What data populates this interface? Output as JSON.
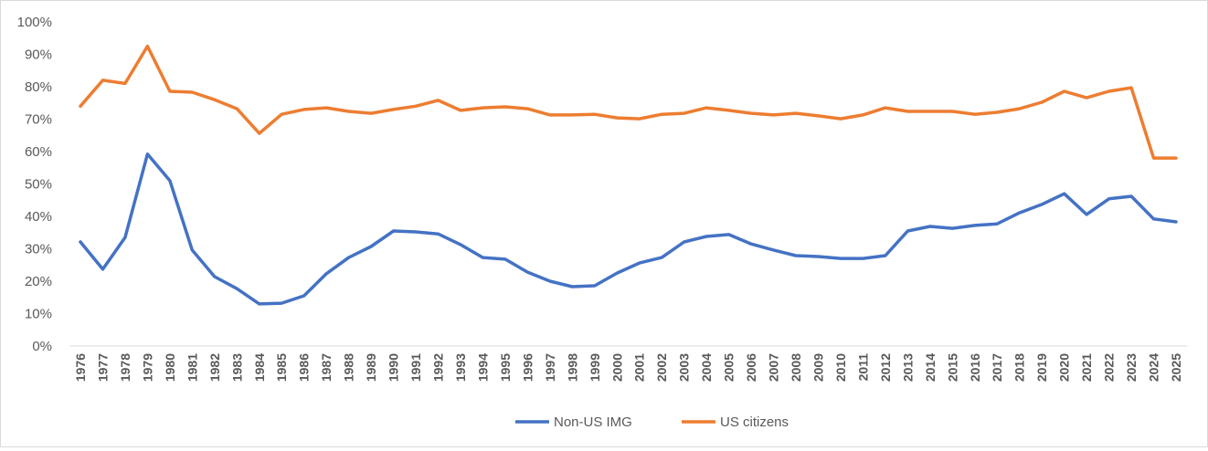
{
  "chart_data": {
    "type": "line",
    "title": "",
    "xlabel": "",
    "ylabel": "",
    "ylim": [
      0,
      100
    ],
    "y_ticks": [
      "0%",
      "10%",
      "20%",
      "30%",
      "40%",
      "50%",
      "60%",
      "70%",
      "80%",
      "90%",
      "100%"
    ],
    "grid": false,
    "legend_position": "bottom",
    "x": [
      "1976",
      "1977",
      "1978",
      "1979",
      "1980",
      "1981",
      "1982",
      "1983",
      "1984",
      "1985",
      "1986",
      "1987",
      "1988",
      "1989",
      "1990",
      "1991",
      "1992",
      "1993",
      "1994",
      "1995",
      "1996",
      "1997",
      "1998",
      "1999",
      "2000",
      "2001",
      "2002",
      "2003",
      "2004",
      "2005",
      "2006",
      "2007",
      "2008",
      "2009",
      "2010",
      "2011",
      "2012",
      "2013",
      "2014",
      "2015",
      "2016",
      "2017",
      "2018",
      "2019",
      "2020",
      "2021",
      "2022",
      "2023",
      "2024",
      "2025"
    ],
    "series": [
      {
        "name": "Non-US IMG",
        "color": "#4472c4",
        "values": [
          32.1,
          23.7,
          33.5,
          59.2,
          51,
          29.6,
          21.4,
          17.7,
          13,
          13.2,
          15.5,
          22.3,
          27.3,
          30.7,
          35.5,
          35.2,
          34.6,
          31.3,
          27.3,
          26.8,
          22.8,
          20,
          18.3,
          18.6,
          22.5,
          25.6,
          27.3,
          32.1,
          33.8,
          34.4,
          31.5,
          29.6,
          27.9,
          27.6,
          27,
          27,
          27.9,
          35.5,
          36.9,
          36.3,
          37.2,
          37.7,
          41.1,
          43.7,
          47,
          40.6,
          45.4,
          46.2,
          39.2,
          38.3
        ]
      },
      {
        "name": "US citizens",
        "color": "#ed7d31",
        "values": [
          74,
          82,
          81,
          92.5,
          78.6,
          78.3,
          76,
          73.2,
          65.6,
          71.5,
          73,
          73.5,
          72.4,
          71.8,
          73,
          74,
          75.8,
          72.7,
          73.5,
          73.8,
          73.2,
          71.3,
          71.3,
          71.5,
          70.4,
          70.1,
          71.5,
          71.8,
          73.5,
          72.7,
          71.8,
          71.3,
          71.8,
          71,
          70.1,
          71.3,
          73.5,
          72.4,
          72.4,
          72.4,
          71.5,
          72.1,
          73.2,
          75.2,
          78.6,
          76.6,
          78.6,
          79.7,
          58,
          58
        ]
      }
    ]
  }
}
